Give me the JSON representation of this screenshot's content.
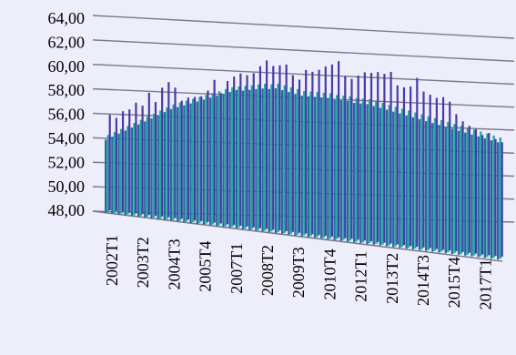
{
  "chart_data": {
    "type": "bar",
    "title": "",
    "xlabel": "",
    "ylabel": "",
    "ylim": [
      48,
      64
    ],
    "y_ticks": [
      "64,00",
      "62,00",
      "60,00",
      "58,00",
      "56,00",
      "54,00",
      "52,00",
      "50,00",
      "48,00"
    ],
    "x_tick_labels": [
      "2002T1",
      "2003T2",
      "2004T3",
      "2005T4",
      "2007T1",
      "2008T2",
      "2009T3",
      "2010T4",
      "2012T1",
      "2013T2",
      "2014T3",
      "2015T4",
      "2017T1"
    ],
    "grid": true,
    "legend": "none",
    "style": "3d-clustered-column",
    "categories": [
      "2002T1",
      "2002T2",
      "2002T3",
      "2002T4",
      "2003T1",
      "2003T2",
      "2003T3",
      "2003T4",
      "2004T1",
      "2004T2",
      "2004T3",
      "2004T4",
      "2005T1",
      "2005T2",
      "2005T3",
      "2005T4",
      "2006T1",
      "2006T2",
      "2006T3",
      "2006T4",
      "2007T1",
      "2007T2",
      "2007T3",
      "2007T4",
      "2008T1",
      "2008T2",
      "2008T3",
      "2008T4",
      "2009T1",
      "2009T2",
      "2009T3",
      "2009T4",
      "2010T1",
      "2010T2",
      "2010T3",
      "2010T4",
      "2011T1",
      "2011T2",
      "2011T3",
      "2011T4",
      "2012T1",
      "2012T2",
      "2012T3",
      "2012T4",
      "2013T1",
      "2013T2",
      "2013T3",
      "2013T4",
      "2014T1",
      "2014T2",
      "2014T3",
      "2014T4",
      "2015T1",
      "2015T2",
      "2015T3",
      "2015T4",
      "2016T1",
      "2016T2",
      "2016T3",
      "2016T4",
      "2017T1"
    ],
    "series": [
      {
        "color": "#1f6fa0",
        "values": [
          54.0,
          54.3,
          54.6,
          54.9,
          55.2,
          55.5,
          55.8,
          56.1,
          56.4,
          56.7,
          57.0,
          57.2,
          57.4,
          57.6,
          57.8,
          58.0,
          58.2,
          58.4,
          58.6,
          58.8,
          59.0,
          59.0,
          59.1,
          59.2,
          59.3,
          59.3,
          59.4,
          59.3,
          59.2,
          59.1,
          59.0,
          59.0,
          59.0,
          59.0,
          59.0,
          58.9,
          58.9,
          58.9,
          58.8,
          58.8,
          58.8,
          58.7,
          58.6,
          58.5,
          58.4,
          58.3,
          58.2,
          58.1,
          58.0,
          57.9,
          57.8,
          57.7,
          57.6,
          57.5,
          57.4,
          57.3,
          57.2,
          57.1,
          57.0,
          56.9,
          56.8
        ]
      },
      {
        "color": "#2aa5a0",
        "values": [
          54.3,
          54.6,
          54.9,
          55.2,
          55.5,
          55.8,
          56.1,
          56.4,
          56.7,
          57.0,
          57.3,
          57.5,
          57.7,
          57.9,
          58.1,
          58.3,
          58.5,
          58.7,
          58.9,
          59.1,
          59.2,
          59.3,
          59.4,
          59.5,
          59.6,
          59.6,
          59.7,
          59.6,
          59.5,
          59.4,
          59.3,
          59.3,
          59.3,
          59.3,
          59.3,
          59.2,
          59.2,
          59.2,
          59.1,
          59.1,
          59.1,
          59.0,
          58.9,
          58.8,
          58.7,
          58.6,
          58.5,
          58.4,
          58.3,
          58.2,
          58.1,
          58.0,
          57.9,
          57.8,
          57.7,
          57.6,
          57.5,
          57.4,
          57.3,
          57.2,
          57.1
        ]
      },
      {
        "color": "#4a3aa8",
        "values": [
          55.8,
          55.6,
          56.2,
          56.4,
          57.0,
          56.8,
          57.9,
          57.2,
          58.4,
          58.9,
          58.5,
          57.5,
          57.8,
          57.9,
          58.0,
          58.5,
          59.4,
          58.4,
          59.4,
          59.8,
          60.1,
          60.0,
          60.2,
          60.8,
          61.3,
          60.9,
          61.0,
          61.1,
          60.3,
          60.0,
          60.8,
          60.7,
          60.9,
          61.2,
          61.4,
          61.7,
          60.6,
          60.4,
          60.7,
          61.0,
          61.0,
          61.1,
          61.0,
          61.2,
          60.2,
          60.1,
          60.2,
          60.9,
          59.9,
          59.7,
          59.5,
          59.6,
          59.3,
          58.4,
          57.9,
          57.6,
          57.4,
          57.0,
          57.2,
          56.8,
          56.6
        ]
      }
    ]
  },
  "colors": {
    "background": "#eeeefa",
    "gridline": "#7a7a8a",
    "baseline": "#7a7a8a"
  }
}
